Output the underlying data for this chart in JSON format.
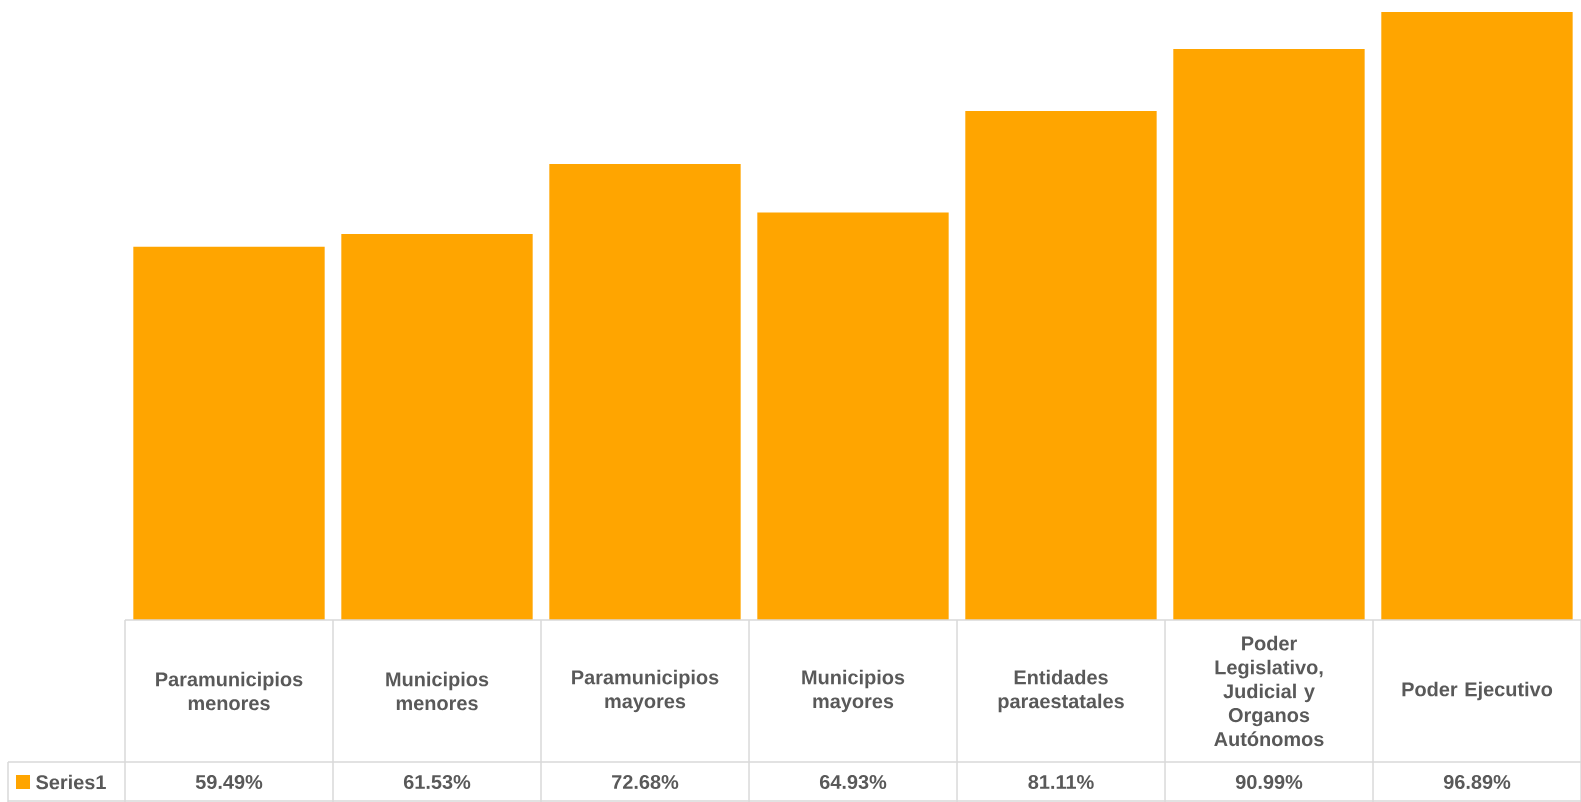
{
  "chart_data": {
    "type": "bar",
    "categories": [
      "Paramunicipios menores",
      "Municipios menores",
      "Paramunicipios mayores",
      "Municipios mayores",
      "Entidades paraestatales",
      "Poder Legislativo, Judicial y Organos Autónomos",
      "Poder Ejecutivo"
    ],
    "series": [
      {
        "name": "Series1",
        "color": "#ffa500",
        "values": [
          59.49,
          61.53,
          72.68,
          64.93,
          81.11,
          90.99,
          96.89
        ],
        "value_labels": [
          "59.49%",
          "61.53%",
          "72.68%",
          "64.93%",
          "81.11%",
          "90.99%",
          "96.89%"
        ]
      }
    ],
    "legend": "bottom"
  }
}
